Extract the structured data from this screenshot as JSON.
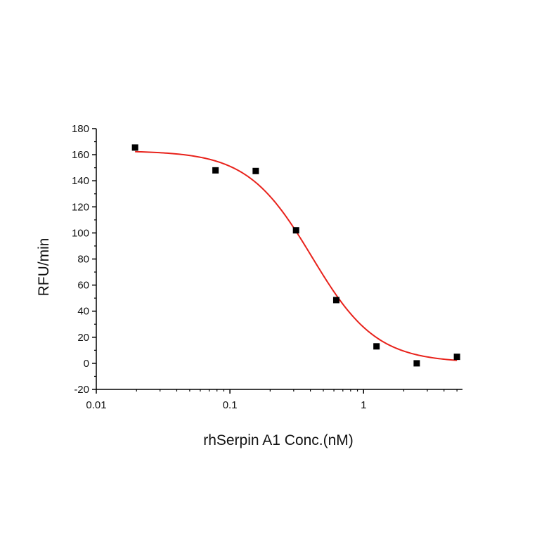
{
  "chart_data": {
    "type": "scatter",
    "title": "",
    "xlabel": "rhSerpin A1 Conc.(nM)",
    "ylabel": "RFU/min",
    "x_scale": "log",
    "xlim": [
      0.01,
      5.5
    ],
    "ylim": [
      -20,
      180
    ],
    "x_ticks": [
      {
        "value": 0.01,
        "label": "0.01"
      },
      {
        "value": 0.1,
        "label": "0.1"
      },
      {
        "value": 1,
        "label": "1"
      }
    ],
    "y_ticks": [
      {
        "value": -20,
        "label": "-20"
      },
      {
        "value": 0,
        "label": "0"
      },
      {
        "value": 20,
        "label": "20"
      },
      {
        "value": 40,
        "label": "40"
      },
      {
        "value": 60,
        "label": "60"
      },
      {
        "value": 80,
        "label": "80"
      },
      {
        "value": 100,
        "label": "100"
      },
      {
        "value": 120,
        "label": "120"
      },
      {
        "value": 140,
        "label": "140"
      },
      {
        "value": 160,
        "label": "160"
      },
      {
        "value": 180,
        "label": "180"
      }
    ],
    "grid": false,
    "legend": "none",
    "series": [
      {
        "kind": "points",
        "marker": "square",
        "color": "#000000",
        "x": [
          0.0195,
          0.078,
          0.156,
          0.3125,
          0.625,
          1.25,
          2.5,
          5.0
        ],
        "y": [
          165.5,
          148,
          147.5,
          102,
          48.5,
          13,
          0,
          5
        ]
      },
      {
        "kind": "fit-curve",
        "model": "four-parameter logistic",
        "color": "#e8221b",
        "top": 163,
        "bottom": 0.5,
        "ic50": 0.41,
        "hill": 1.8,
        "x_range": [
          0.0195,
          5.0
        ]
      }
    ],
    "axis_color": "#000000"
  }
}
